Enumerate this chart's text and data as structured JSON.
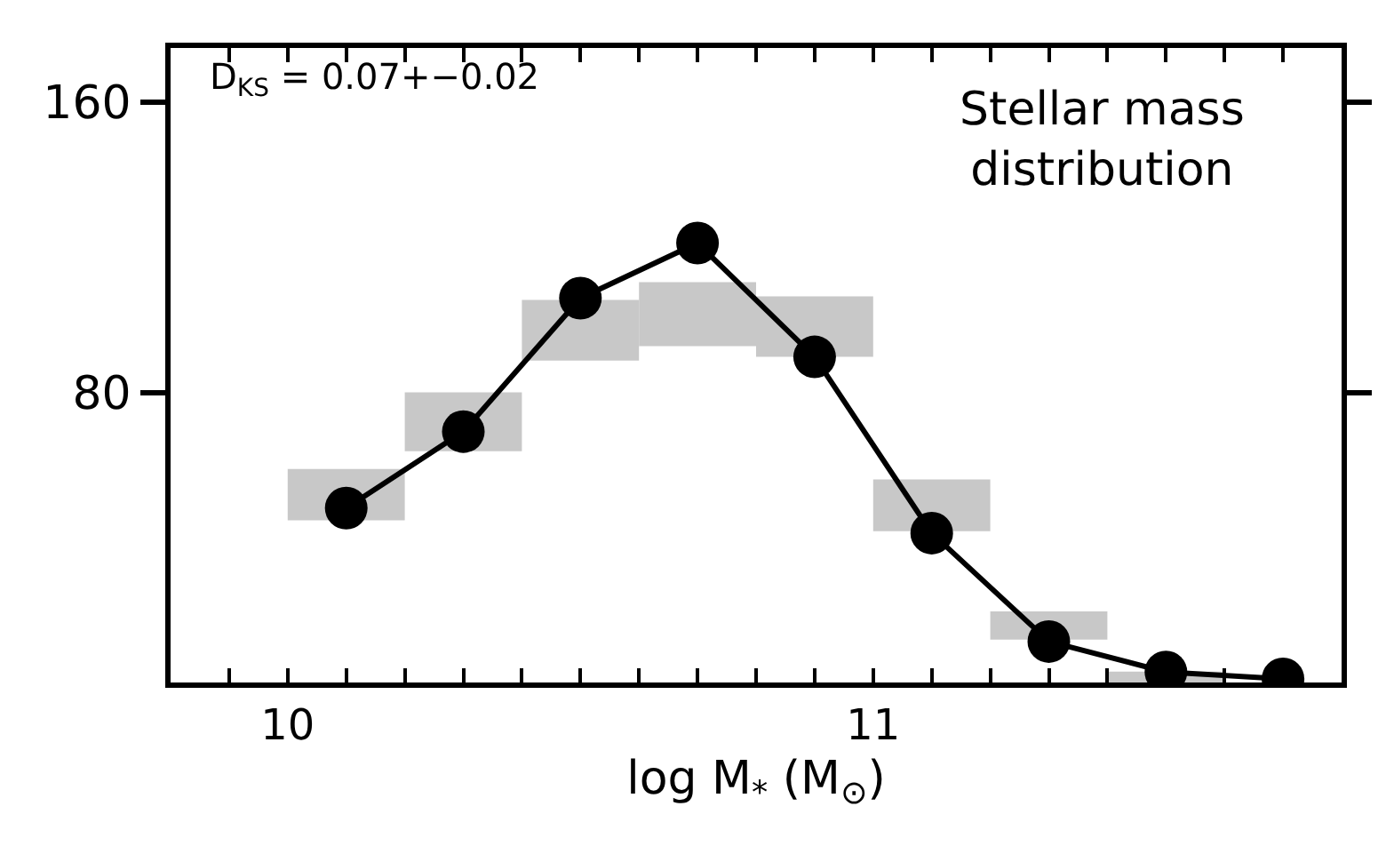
{
  "chart_data": {
    "type": "line",
    "xlabel": "log M$_{*}$ (M$_{⊙}$)",
    "annotations": [
      "D$_{KS}$ = 0.07+−0.02",
      "Stellar mass\ndistribution"
    ],
    "xlim": [
      9.8,
      11.8
    ],
    "ylim": [
      0,
      175
    ],
    "xticks": [
      {
        "value": 9.9,
        "label": null
      },
      10,
      {
        "value": 10.1,
        "label": null
      },
      {
        "value": 10.2,
        "label": null
      },
      {
        "value": 10.3,
        "label": null
      },
      {
        "value": 10.4,
        "label": null
      },
      {
        "value": 10.5,
        "label": null
      },
      {
        "value": 10.6,
        "label": null
      },
      {
        "value": 10.7,
        "label": null
      },
      {
        "value": 10.8,
        "label": null
      },
      {
        "value": 10.9,
        "label": null
      },
      11,
      {
        "value": 11.1,
        "label": null
      },
      {
        "value": 11.2,
        "label": null
      },
      {
        "value": 11.3,
        "label": null
      },
      {
        "value": 11.4,
        "label": null
      },
      {
        "value": 11.5,
        "label": null
      },
      {
        "value": 11.6,
        "label": null
      },
      {
        "value": 11.7,
        "label": null
      }
    ],
    "yticks": [
      80,
      160
    ],
    "marker": "circle",
    "line_style": "solid",
    "series": [
      {
        "type": "bar",
        "color": "#c8c8c8",
        "x": [
          10.1,
          10.3,
          10.5,
          10.7,
          10.9,
          11.1,
          11.3,
          11.5
        ],
        "base": [
          44.7,
          63.8,
          88.8,
          92.8,
          89.8,
          41.7,
          11.8,
          0
        ],
        "values": [
          14.2,
          16.2,
          16.7,
          17.6,
          16.7,
          14.3,
          7.8,
          3
        ]
      },
      {
        "color": "#000000",
        "x": [
          10.1,
          10.3,
          10.5,
          10.7,
          10.9,
          11.1,
          11.3,
          11.5,
          11.7
        ],
        "values": [
          48.1,
          69.2,
          106,
          121.2,
          89.8,
          41.2,
          11.3,
          2.9,
          1
        ]
      }
    ]
  }
}
